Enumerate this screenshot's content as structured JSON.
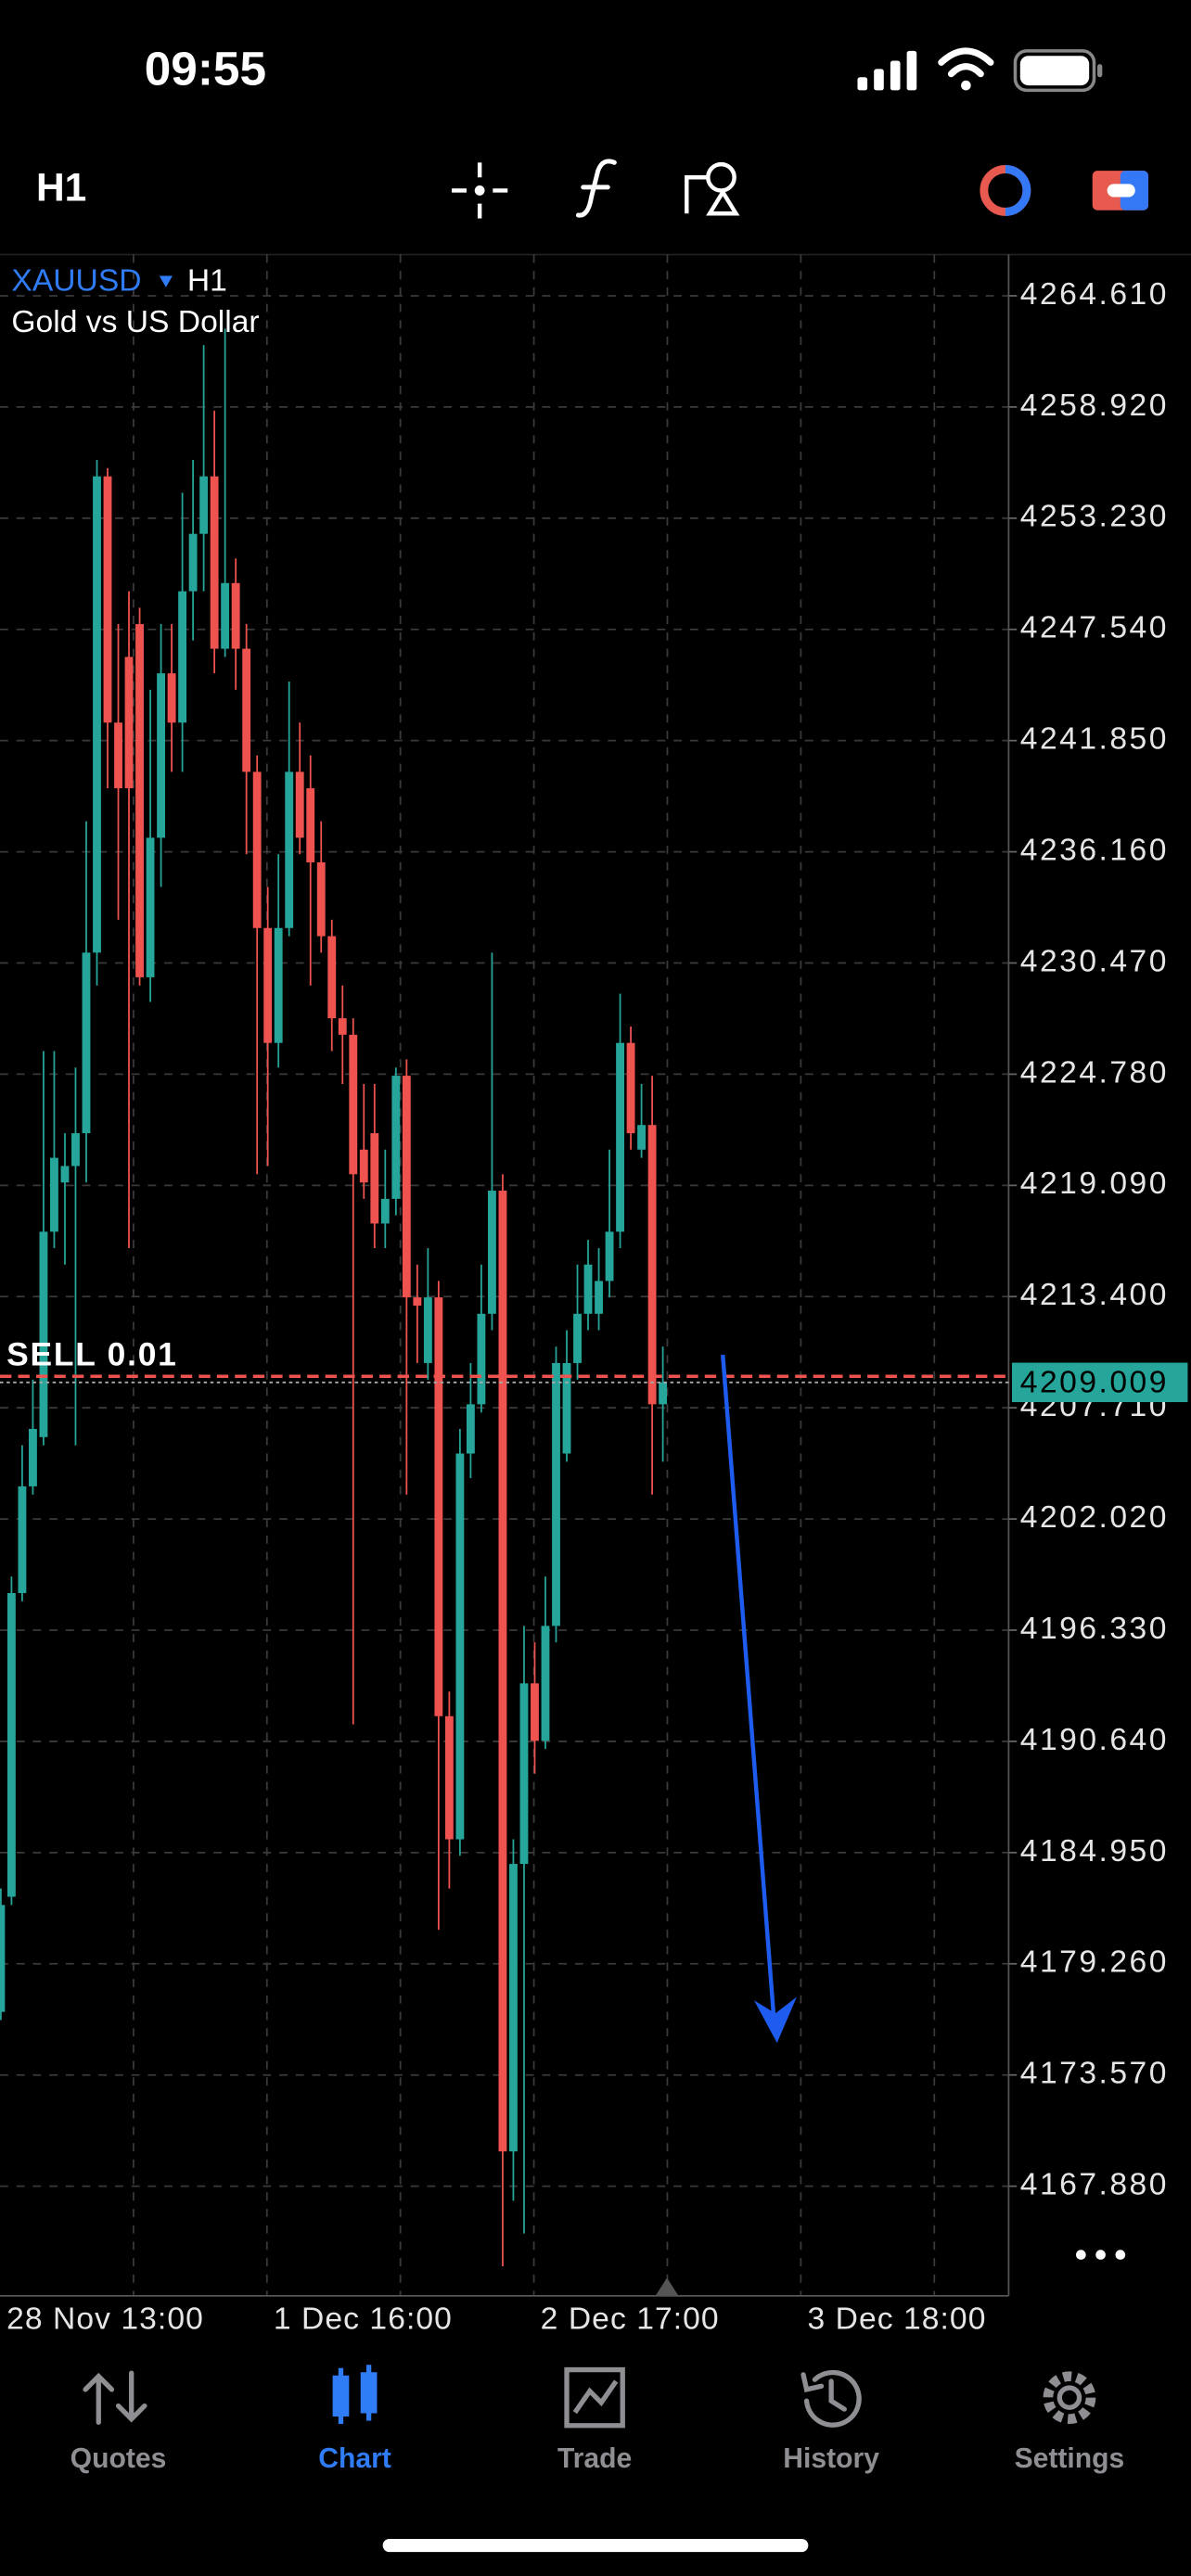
{
  "status_bar": {
    "time": "09:55"
  },
  "toolbar": {
    "timeframe": "H1"
  },
  "chart_data": {
    "type": "candlestick",
    "title": "XAUUSD",
    "timeframe": "H1",
    "subtitle": "Gold vs US Dollar",
    "open": [
      4176.8,
      4182.69,
      4198.23,
      4203.69,
      4206.21,
      4216.72,
      4219.24,
      4220.08,
      4221.76,
      4231.0,
      4255.37,
      4242.77,
      4246.13,
      4247.81,
      4229.74,
      4236.88,
      4245.29,
      4242.77,
      4249.49,
      4252.43,
      4255.37,
      4246.55,
      4249.91,
      4246.55,
      4240.25,
      4232.26,
      4226.38,
      4232.26,
      4240.25,
      4239.41,
      4235.62,
      4231.84,
      4227.64,
      4226.8,
      4220.92,
      4221.76,
      4217.14,
      4218.4,
      4224.7,
      4213.36,
      4210.0,
      4213.36,
      4191.93,
      4185.63,
      4205.37,
      4207.89,
      4212.52,
      4218.82,
      4169.66,
      4184.37,
      4193.61,
      4190.67,
      4196.55,
      4205.37,
      4210.0,
      4212.52,
      4212.52,
      4214.2,
      4216.72,
      4226.38,
      4220.92,
      4222.18,
      4207.89
    ],
    "high": [
      4183.11,
      4199.07,
      4205.79,
      4209.15,
      4225.96,
      4225.96,
      4221.76,
      4225.12,
      4237.72,
      4256.21,
      4255.79,
      4247.81,
      4249.49,
      4248.65,
      4244.45,
      4247.81,
      4247.81,
      4254.53,
      4256.21,
      4262.09,
      4258.73,
      4262.93,
      4251.17,
      4247.81,
      4241.09,
      4234.36,
      4236.04,
      4244.87,
      4242.77,
      4241.09,
      4237.72,
      4232.68,
      4229.32,
      4227.64,
      4224.28,
      4224.28,
      4220.92,
      4225.12,
      4225.54,
      4215.04,
      4215.88,
      4214.2,
      4193.19,
      4206.63,
      4210.0,
      4215.04,
      4231.0,
      4219.66,
      4185.63,
      4196.55,
      4195.71,
      4199.07,
      4210.84,
      4211.68,
      4215.04,
      4216.3,
      4215.88,
      4220.92,
      4228.9,
      4227.22,
      4224.28,
      4224.7,
      4210.84
    ],
    "low": [
      4176.38,
      4182.27,
      4197.81,
      4203.27,
      4205.79,
      4215.88,
      4215.04,
      4205.79,
      4219.24,
      4229.32,
      4239.41,
      4232.68,
      4215.88,
      4229.32,
      4228.48,
      4234.36,
      4240.25,
      4240.25,
      4246.97,
      4249.49,
      4245.29,
      4246.13,
      4244.45,
      4236.04,
      4219.66,
      4220.08,
      4225.12,
      4231.84,
      4236.04,
      4229.32,
      4231.0,
      4225.96,
      4224.28,
      4191.51,
      4218.4,
      4215.88,
      4215.88,
      4217.56,
      4203.27,
      4210.0,
      4209.15,
      4181.0,
      4183.11,
      4184.79,
      4204.11,
      4207.47,
      4211.68,
      4163.78,
      4167.14,
      4165.46,
      4188.99,
      4190.25,
      4195.71,
      4204.95,
      4209.15,
      4211.68,
      4211.68,
      4213.36,
      4215.88,
      4220.92,
      4220.5,
      4203.27,
      4204.95
    ],
    "close": [
      4182.27,
      4198.23,
      4203.69,
      4206.63,
      4216.72,
      4220.5,
      4220.08,
      4221.76,
      4231.0,
      4255.37,
      4242.77,
      4239.41,
      4239.41,
      4229.74,
      4236.88,
      4245.29,
      4242.77,
      4249.49,
      4252.43,
      4255.37,
      4246.55,
      4249.91,
      4246.55,
      4240.25,
      4232.26,
      4226.38,
      4232.26,
      4240.25,
      4236.88,
      4235.62,
      4231.84,
      4227.64,
      4226.8,
      4219.66,
      4219.24,
      4217.14,
      4218.4,
      4224.7,
      4213.36,
      4212.94,
      4213.36,
      4191.93,
      4185.63,
      4205.37,
      4207.89,
      4212.52,
      4218.82,
      4169.66,
      4184.37,
      4193.61,
      4190.67,
      4196.55,
      4210.0,
      4210.0,
      4212.52,
      4215.04,
      4214.2,
      4216.72,
      4226.38,
      4221.76,
      4222.18,
      4207.89,
      4209.01
    ],
    "up_color": "#26a69a",
    "down_color": "#ef5350",
    "ylim": [
      4162.27,
      4266.72
    ],
    "yticks": [
      {
        "value": 4264.61,
        "label": "4264.610"
      },
      {
        "value": 4258.92,
        "label": "4258.920"
      },
      {
        "value": 4253.23,
        "label": "4253.230"
      },
      {
        "value": 4247.54,
        "label": "4247.540"
      },
      {
        "value": 4241.85,
        "label": "4241.850"
      },
      {
        "value": 4236.16,
        "label": "4236.160"
      },
      {
        "value": 4230.47,
        "label": "4230.470"
      },
      {
        "value": 4224.78,
        "label": "4224.780"
      },
      {
        "value": 4219.09,
        "label": "4219.090"
      },
      {
        "value": 4213.4,
        "label": "4213.400"
      },
      {
        "value": 4207.71,
        "label": "4207.710"
      },
      {
        "value": 4202.02,
        "label": "4202.020"
      },
      {
        "value": 4196.33,
        "label": "4196.330"
      },
      {
        "value": 4190.64,
        "label": "4190.640"
      },
      {
        "value": 4184.95,
        "label": "4184.950"
      },
      {
        "value": 4179.26,
        "label": "4179.260"
      },
      {
        "value": 4173.57,
        "label": "4173.570"
      },
      {
        "value": 4167.88,
        "label": "4167.880"
      }
    ],
    "x_tick_labels": [
      "28 Nov 13:00",
      "1 Dec 16:00",
      "2 Dec 17:00",
      "3 Dec 18:00"
    ],
    "grid": true,
    "last_price": 4209.009,
    "order_line": {
      "label": "SELL 0.01",
      "value": 4209.32
    }
  },
  "tab_bar": {
    "tabs": [
      {
        "label": "Quotes",
        "active": false
      },
      {
        "label": "Chart",
        "active": true
      },
      {
        "label": "Trade",
        "active": false
      },
      {
        "label": "History",
        "active": false
      },
      {
        "label": "Settings",
        "active": false
      }
    ]
  }
}
